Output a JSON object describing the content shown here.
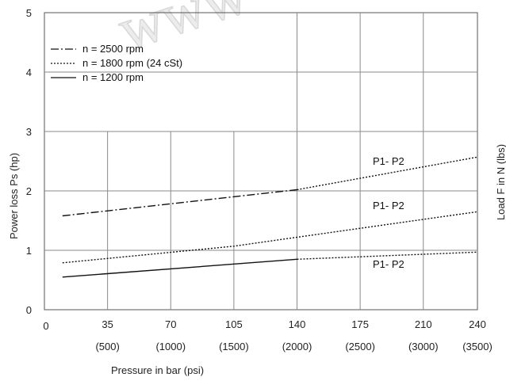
{
  "chart_data": {
    "type": "line",
    "xlabel": "Pressure in bar (psi)",
    "ylabel": "Power loss Ps (hp)",
    "right_axis_label": "Load F in N (lbs)",
    "watermark": "www",
    "xlim": [
      0,
      240
    ],
    "ylim": [
      0,
      5
    ],
    "grid": true,
    "x_ticks": [
      {
        "value": 0,
        "label": "0",
        "sublabel": ""
      },
      {
        "value": 35,
        "label": "35",
        "sublabel": "(500)"
      },
      {
        "value": 70,
        "label": "70",
        "sublabel": "(1000)"
      },
      {
        "value": 105,
        "label": "105",
        "sublabel": "(1500)"
      },
      {
        "value": 140,
        "label": "140",
        "sublabel": "(2000)"
      },
      {
        "value": 175,
        "label": "175",
        "sublabel": "(2500)"
      },
      {
        "value": 210,
        "label": "210",
        "sublabel": "(3000)"
      },
      {
        "value": 240,
        "label": "240",
        "sublabel": "(3500)"
      }
    ],
    "y_ticks": [
      {
        "value": 0,
        "label": "0"
      },
      {
        "value": 1,
        "label": "1"
      },
      {
        "value": 2,
        "label": "2"
      },
      {
        "value": 3,
        "label": "3"
      },
      {
        "value": 4,
        "label": "4"
      },
      {
        "value": 5,
        "label": "5"
      }
    ],
    "legend": {
      "placement": "top-left",
      "entries": [
        {
          "series": "n2500",
          "text": "n = 2500 rpm",
          "style": "dashdot"
        },
        {
          "series": "n1800",
          "text": "n = 1800 rpm  (24 cSt)",
          "style": "dotted"
        },
        {
          "series": "n1200",
          "text": "n = 1200 rpm",
          "style": "solid"
        }
      ]
    },
    "series": [
      {
        "name": "n = 2500 rpm",
        "style": "dashdot",
        "x": [
          10,
          140
        ],
        "y": [
          1.58,
          2.02
        ],
        "extension": {
          "x": [
            140,
            240
          ],
          "y": [
            2.02,
            2.57
          ]
        },
        "end_label": "P1- P2"
      },
      {
        "name": "n = 1800 rpm  (24 cSt)",
        "style": "dotted",
        "x": [
          10,
          105,
          140,
          240
        ],
        "y": [
          0.79,
          1.07,
          1.22,
          1.65
        ],
        "extension": null,
        "end_label": "P1- P2"
      },
      {
        "name": "n = 1200 rpm",
        "style": "solid",
        "x": [
          10,
          140
        ],
        "y": [
          0.55,
          0.85
        ],
        "extension": {
          "x": [
            140,
            240
          ],
          "y": [
            0.85,
            0.97
          ]
        },
        "end_label": "P1- P2"
      }
    ],
    "colors": {
      "line": "#111111",
      "grid": "#8a8a8a",
      "text": "#222222"
    }
  }
}
